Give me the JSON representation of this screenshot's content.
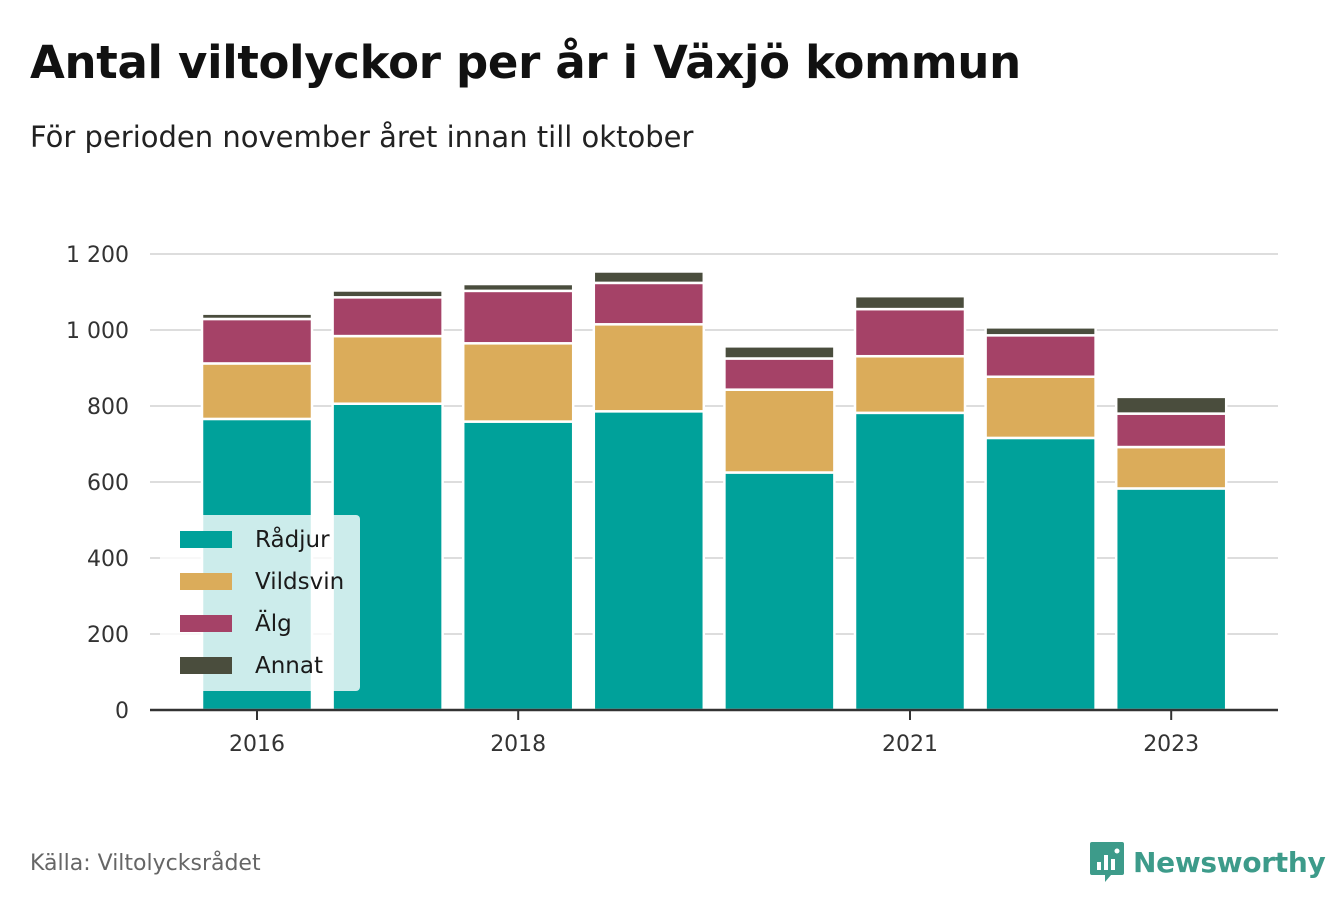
{
  "header": {
    "title": "Antal viltolyckor per år i Växjö kommun",
    "subtitle": "För perioden november året innan till oktober"
  },
  "footer": {
    "source": "Källa: Viltolycksrådet",
    "brand": "Newsworthy",
    "brand_icon": "newsworthy-logo-icon"
  },
  "colors": {
    "radjur": "#00a19a",
    "vildsvin": "#dbac5a",
    "alg": "#a54267",
    "annat": "#4a4d3d",
    "grid": "#dddddd",
    "axis": "#333333",
    "brand": "#3d9b8a"
  },
  "chart_data": {
    "type": "bar",
    "stacked": true,
    "x": [
      2016,
      2017,
      2018,
      2019,
      2020,
      2021,
      2022,
      2023
    ],
    "x_tick_labels": [
      "2016",
      "2018",
      "2021",
      "2023"
    ],
    "y_ticks": [
      0,
      200,
      400,
      600,
      800,
      1000,
      1200
    ],
    "y_tick_labels": [
      "0",
      "200",
      "400",
      "600",
      "800",
      "1 000",
      "1 200"
    ],
    "ylim": [
      0,
      1200
    ],
    "grid": true,
    "legend_position": "bottom-left",
    "series": [
      {
        "name": "Rådjur",
        "values": [
          766,
          806,
          759,
          786,
          625,
          782,
          716,
          583
        ]
      },
      {
        "name": "Vildsvin",
        "values": [
          146,
          178,
          206,
          229,
          218,
          149,
          161,
          109
        ]
      },
      {
        "name": "Älg",
        "values": [
          117,
          102,
          138,
          109,
          82,
          124,
          109,
          88
        ]
      },
      {
        "name": "Annat",
        "values": [
          14,
          18,
          18,
          30,
          32,
          34,
          21,
          44
        ]
      }
    ]
  }
}
